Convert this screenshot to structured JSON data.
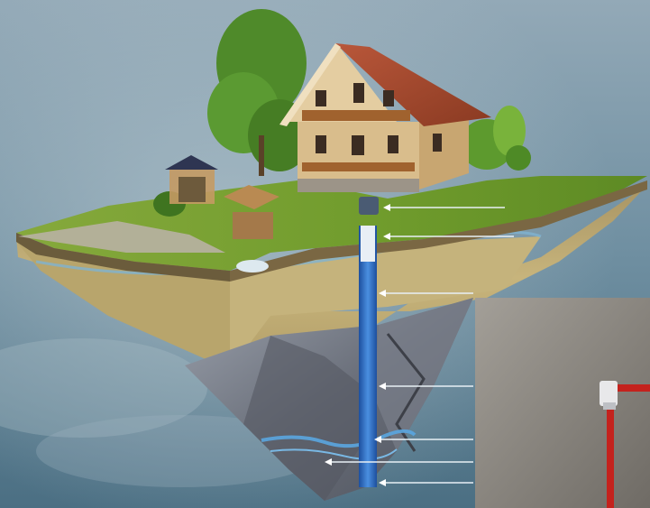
{
  "image": {
    "kind": "photo-illustration",
    "subject": "water well"
  },
  "colors": {
    "sky_top": "#8fa6b5",
    "sky_bottom": "#4f7488",
    "grass": "#6e9a2e",
    "soil": "#b9a46a",
    "rock": "#6b6e78",
    "well_pipe": "#2f6fc4",
    "roof": "#a9482a",
    "inset_bg": "#8d8880",
    "red_pipe": "#c4221d"
  }
}
